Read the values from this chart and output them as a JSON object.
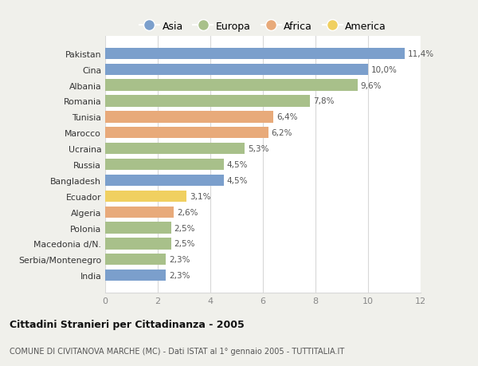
{
  "countries": [
    "Pakistan",
    "Cina",
    "Albania",
    "Romania",
    "Tunisia",
    "Marocco",
    "Ucraina",
    "Russia",
    "Bangladesh",
    "Ecuador",
    "Algeria",
    "Polonia",
    "Macedonia d/N.",
    "Serbia/Montenegro",
    "India"
  ],
  "values": [
    11.4,
    10.0,
    9.6,
    7.8,
    6.4,
    6.2,
    5.3,
    4.5,
    4.5,
    3.1,
    2.6,
    2.5,
    2.5,
    2.3,
    2.3
  ],
  "labels": [
    "11,4%",
    "10,0%",
    "9,6%",
    "7,8%",
    "6,4%",
    "6,2%",
    "5,3%",
    "4,5%",
    "4,5%",
    "3,1%",
    "2,6%",
    "2,5%",
    "2,5%",
    "2,3%",
    "2,3%"
  ],
  "continent": [
    "Asia",
    "Asia",
    "Europa",
    "Europa",
    "Africa",
    "Africa",
    "Europa",
    "Europa",
    "Asia",
    "America",
    "Africa",
    "Europa",
    "Europa",
    "Europa",
    "Asia"
  ],
  "colors": {
    "Asia": "#7B9FCC",
    "Europa": "#A8C08A",
    "Africa": "#E8AA7A",
    "America": "#F0D060"
  },
  "legend_order": [
    "Asia",
    "Europa",
    "Africa",
    "America"
  ],
  "title_main": "Cittadini Stranieri per Cittadinanza - 2005",
  "title_sub": "COMUNE DI CIVITANOVA MARCHE (MC) - Dati ISTAT al 1° gennaio 2005 - TUTTITALIA.IT",
  "xlim": [
    0,
    12
  ],
  "xticks": [
    0,
    2,
    4,
    6,
    8,
    10,
    12
  ],
  "background_color": "#f0f0eb",
  "plot_bg": "#ffffff",
  "grid_color": "#d8d8d8",
  "bar_height": 0.72
}
